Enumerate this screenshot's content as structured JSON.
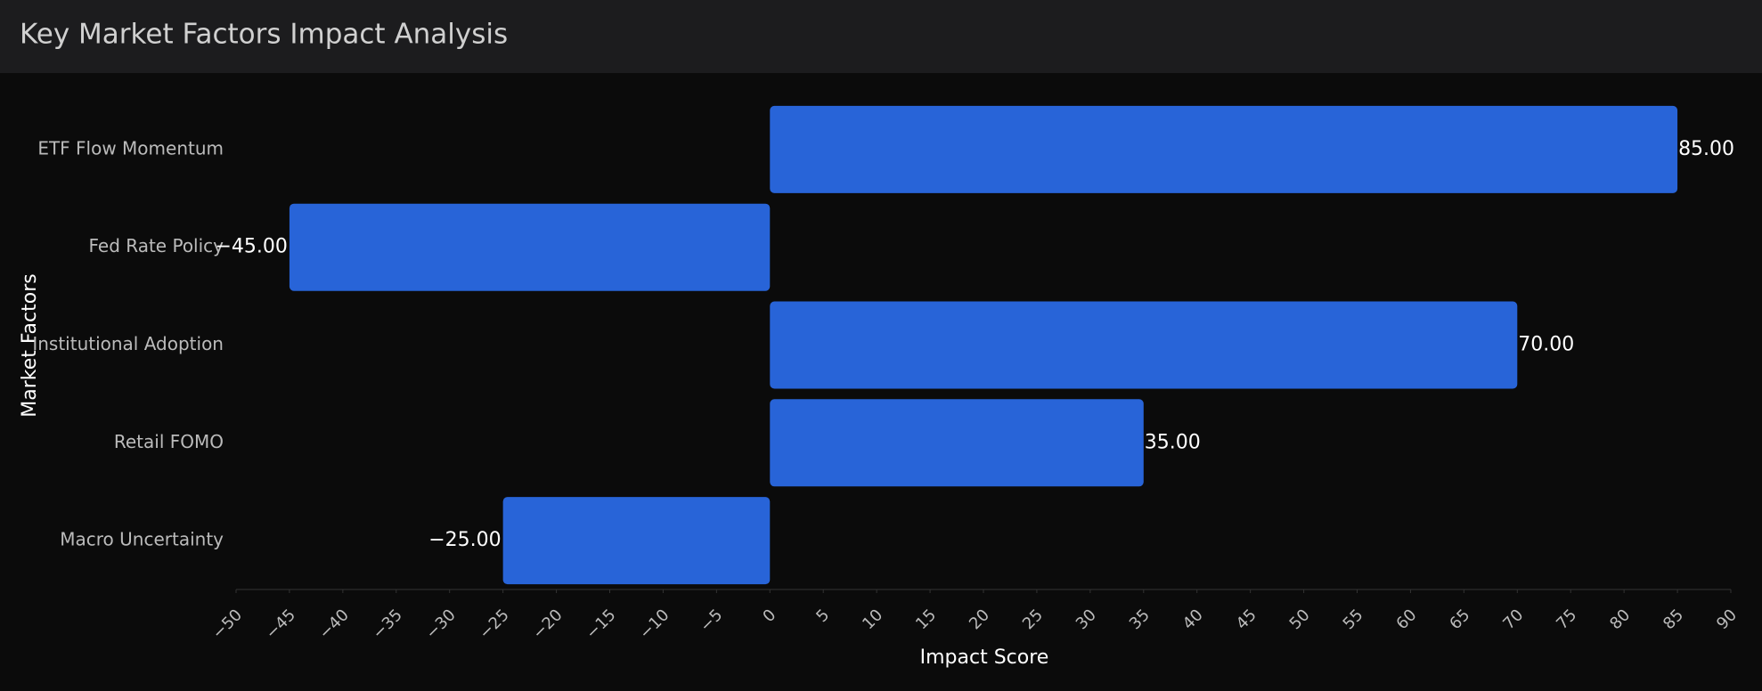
{
  "chart_data": {
    "type": "bar",
    "orientation": "horizontal",
    "title": "Key Market Factors Impact Analysis",
    "x_label": "Impact Score",
    "y_label": "Market Factors",
    "categories": [
      "ETF Flow Momentum",
      "Fed Rate Policy",
      "Institutional Adoption",
      "Retail FOMO",
      "Macro Uncertainty"
    ],
    "values": [
      85,
      -45,
      70,
      35,
      -25
    ],
    "value_labels": [
      "85.00",
      "−45.00",
      "70.00",
      "35.00",
      "−25.00"
    ],
    "color": "#2864d8",
    "xlim": [
      -50,
      90
    ],
    "xticks": [
      {
        "value": -50,
        "label": "−50"
      },
      {
        "value": -45,
        "label": "−45"
      },
      {
        "value": -40,
        "label": "−40"
      },
      {
        "value": -35,
        "label": "−35"
      },
      {
        "value": -30,
        "label": "−30"
      },
      {
        "value": -25,
        "label": "−25"
      },
      {
        "value": -20,
        "label": "−20"
      },
      {
        "value": -15,
        "label": "−15"
      },
      {
        "value": -10,
        "label": "−10"
      },
      {
        "value": -5,
        "label": "−5"
      },
      0,
      5,
      10,
      15,
      20,
      25,
      30,
      35,
      40,
      45,
      50,
      55,
      60,
      65,
      70,
      75,
      80,
      85,
      90
    ],
    "grid": false
  }
}
